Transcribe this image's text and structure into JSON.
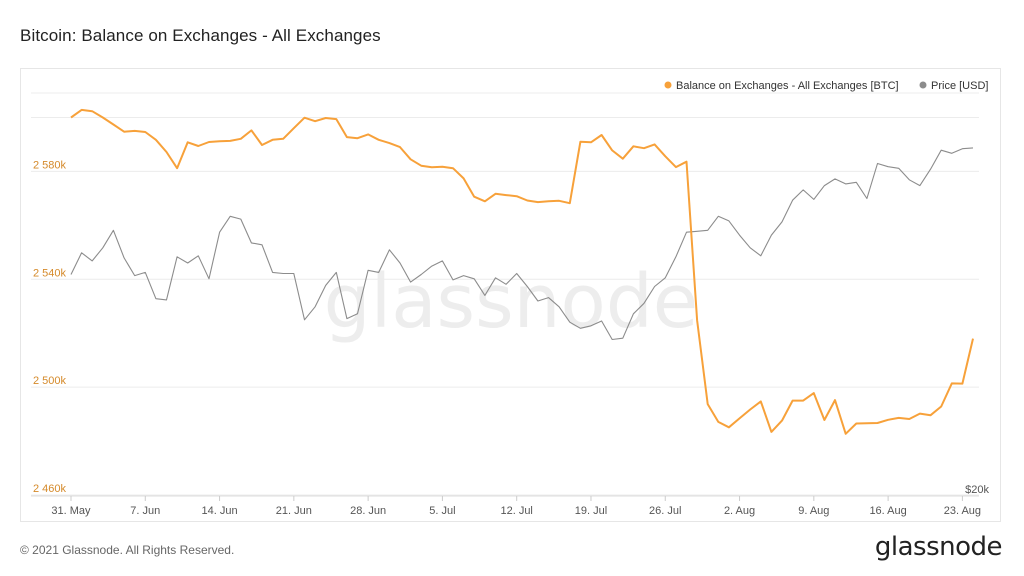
{
  "page": {
    "title": "Bitcoin: Balance on Exchanges - All Exchanges",
    "copyright": "© 2021 Glassnode. All Rights Reserved.",
    "logo": "glassnode",
    "watermark": "glassnode"
  },
  "colors": {
    "balance": "#F7A13A",
    "price": "#8c8c8c",
    "balance_axis_text": "#d58a2a",
    "grid": "#ececec",
    "watermark": "#ededed"
  },
  "chart_data": {
    "type": "line",
    "title": "Bitcoin: Balance on Exchanges - All Exchanges",
    "x": [
      "2021-05-31",
      "2021-06-01",
      "2021-06-02",
      "2021-06-03",
      "2021-06-04",
      "2021-06-05",
      "2021-06-06",
      "2021-06-07",
      "2021-06-08",
      "2021-06-09",
      "2021-06-10",
      "2021-06-11",
      "2021-06-12",
      "2021-06-13",
      "2021-06-14",
      "2021-06-15",
      "2021-06-16",
      "2021-06-17",
      "2021-06-18",
      "2021-06-19",
      "2021-06-20",
      "2021-06-21",
      "2021-06-22",
      "2021-06-23",
      "2021-06-24",
      "2021-06-25",
      "2021-06-26",
      "2021-06-27",
      "2021-06-28",
      "2021-06-29",
      "2021-06-30",
      "2021-07-01",
      "2021-07-02",
      "2021-07-03",
      "2021-07-04",
      "2021-07-05",
      "2021-07-06",
      "2021-07-07",
      "2021-07-08",
      "2021-07-09",
      "2021-07-10",
      "2021-07-11",
      "2021-07-12",
      "2021-07-13",
      "2021-07-14",
      "2021-07-15",
      "2021-07-16",
      "2021-07-17",
      "2021-07-18",
      "2021-07-19",
      "2021-07-20",
      "2021-07-21",
      "2021-07-22",
      "2021-07-23",
      "2021-07-24",
      "2021-07-25",
      "2021-07-26",
      "2021-07-27",
      "2021-07-28",
      "2021-07-29",
      "2021-07-30",
      "2021-07-31",
      "2021-08-01",
      "2021-08-02",
      "2021-08-03",
      "2021-08-04",
      "2021-08-05",
      "2021-08-06",
      "2021-08-07",
      "2021-08-08",
      "2021-08-09",
      "2021-08-10",
      "2021-08-11",
      "2021-08-12",
      "2021-08-13",
      "2021-08-14",
      "2021-08-15",
      "2021-08-16",
      "2021-08-17",
      "2021-08-18",
      "2021-08-19",
      "2021-08-20",
      "2021-08-21",
      "2021-08-22",
      "2021-08-23",
      "2021-08-24"
    ],
    "x_tick_labels": [
      "31. May",
      "7. Jun",
      "14. Jun",
      "21. Jun",
      "28. Jun",
      "5. Jul",
      "12. Jul",
      "19. Jul",
      "26. Jul",
      "2. Aug",
      "9. Aug",
      "16. Aug",
      "23. Aug"
    ],
    "y_left": {
      "ticks": [
        2460000,
        2500000,
        2540000,
        2580000
      ],
      "tick_labels": [
        "2 460k",
        "2 500k",
        "2 540k",
        "2 580k"
      ],
      "range": [
        2460000,
        2615000
      ]
    },
    "y_right": {
      "tick_labels": [
        "$20k"
      ],
      "scale": "log",
      "range": [
        20000,
        60000
      ]
    },
    "legend_position": "top-right",
    "grid": true,
    "series": [
      {
        "name": "Balance on Exchanges - All Exchanges [BTC]",
        "axis": "left",
        "values": [
          2600000,
          2602800,
          2602300,
          2600000,
          2597400,
          2594700,
          2595000,
          2594600,
          2591700,
          2587200,
          2581200,
          2590800,
          2589400,
          2590900,
          2591200,
          2591300,
          2592100,
          2595200,
          2589800,
          2591700,
          2592100,
          2596000,
          2599900,
          2598600,
          2599800,
          2599400,
          2592700,
          2592300,
          2593700,
          2591700,
          2590500,
          2589000,
          2584500,
          2582100,
          2581500,
          2581700,
          2581200,
          2577400,
          2570600,
          2568900,
          2571700,
          2571200,
          2570800,
          2569200,
          2568600,
          2568900,
          2569100,
          2568200,
          2591000,
          2590800,
          2593500,
          2587800,
          2584700,
          2589300,
          2588600,
          2590000,
          2585600,
          2581600,
          2583600,
          2524800,
          2493700,
          2487100,
          2485100,
          2488400,
          2491700,
          2494700,
          2483400,
          2487600,
          2495000,
          2495000,
          2497800,
          2487800,
          2495200,
          2482700,
          2486500,
          2486600,
          2486700,
          2487900,
          2488600,
          2488200,
          2490200,
          2489600,
          2492800,
          2501400,
          2501300,
          2518000
        ]
      },
      {
        "name": "Price [USD]",
        "axis": "right",
        "values": [
          35700,
          37800,
          37000,
          38300,
          40100,
          37300,
          35600,
          35900,
          33500,
          33400,
          37400,
          36800,
          37500,
          35300,
          39900,
          41600,
          41300,
          38800,
          38600,
          35900,
          35800,
          35800,
          31700,
          32800,
          34700,
          35900,
          31800,
          32200,
          36100,
          35900,
          38100,
          36800,
          35000,
          35700,
          36500,
          37000,
          35200,
          35600,
          35300,
          33800,
          35400,
          34800,
          35800,
          34600,
          33300,
          33600,
          32800,
          31500,
          31000,
          31200,
          31600,
          30100,
          30200,
          32200,
          33100,
          34600,
          35400,
          37400,
          39900,
          40000,
          40100,
          41600,
          41100,
          39600,
          38300,
          37500,
          39600,
          41000,
          43400,
          44600,
          43500,
          45100,
          45900,
          45300,
          45500,
          43600,
          47800,
          47400,
          47200,
          45800,
          45100,
          47100,
          49500,
          49100,
          49700,
          49800
        ]
      }
    ]
  }
}
